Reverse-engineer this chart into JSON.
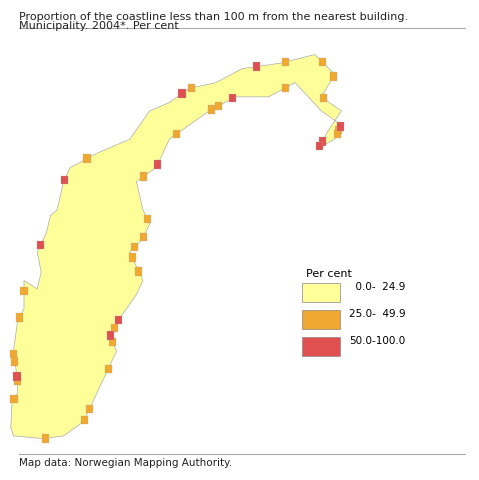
{
  "title_line1": "Proportion of the coastline less than 100 m from the nearest building.",
  "title_line2": "Municipality. 2004*. Per cent",
  "footer": "Map data: Norwegian Mapping Authority.",
  "legend_title": "Per cent",
  "legend_items": [
    {
      "label": "  0.0-  24.9",
      "color": "#FFFF99"
    },
    {
      "label": "25.0-  49.9",
      "color": "#F0A830"
    },
    {
      "label": "50.0-100.0",
      "color": "#E05050"
    }
  ],
  "background_color": "#FFFFFF",
  "title_fontsize": 8.0,
  "footer_fontsize": 7.5,
  "legend_fontsize": 8.0,
  "map_facecolor": "#FFFF99",
  "map_edgecolor": "#AAAAAA",
  "line_color": "#AAAAAA"
}
